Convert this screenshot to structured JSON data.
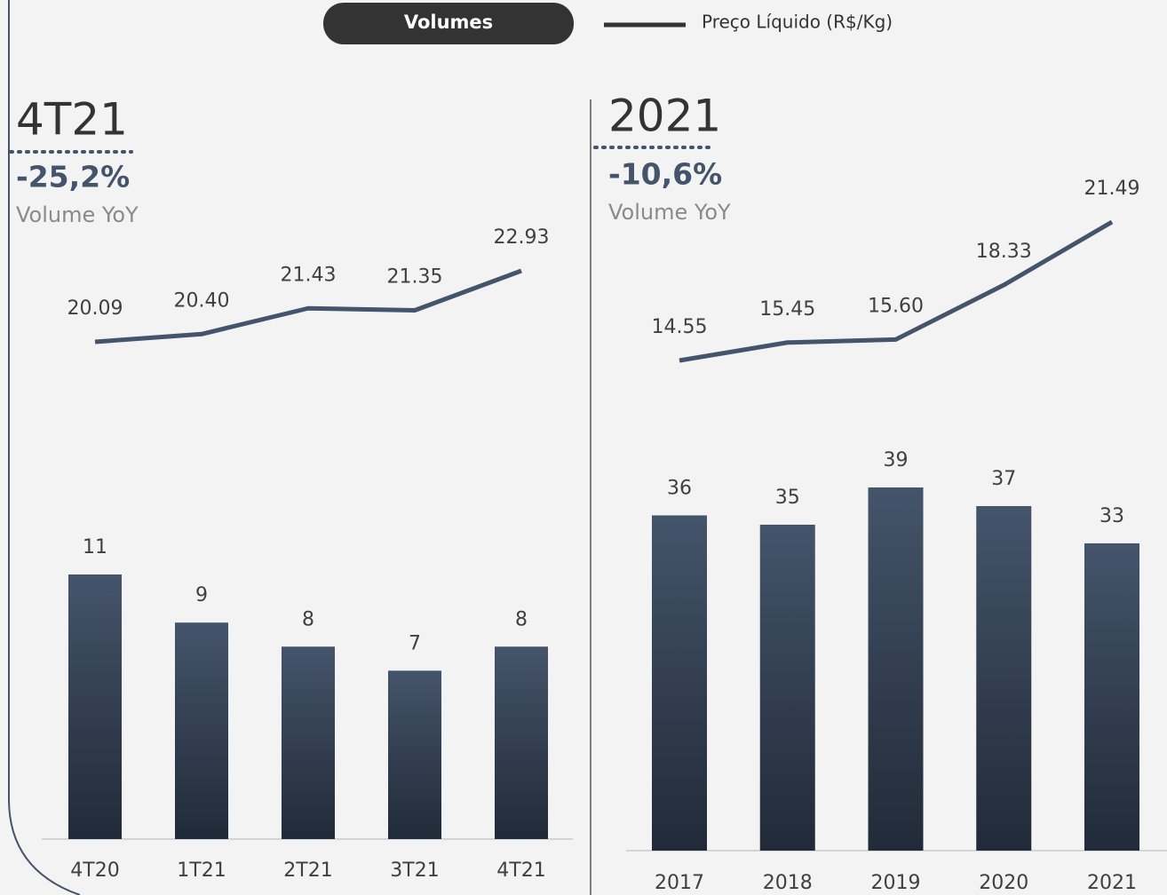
{
  "chart_data": [
    {
      "type": "bar_line",
      "title": "4T21",
      "kpi": "-25,2%",
      "kpi_label": "Volume YoY",
      "categories": [
        "4T20",
        "1T21",
        "2T21",
        "3T21",
        "4T21"
      ],
      "series": [
        {
          "name": "Volumes",
          "type": "bar",
          "color": "#44546a",
          "values": [
            11,
            9,
            8,
            7,
            8
          ]
        },
        {
          "name": "Preço Líquido (R$/Kg)",
          "type": "line",
          "color": "#44546a",
          "values": [
            20.09,
            20.4,
            21.43,
            21.35,
            22.93
          ],
          "value_labels": [
            "20.09",
            "20.40",
            "21.43",
            "21.35",
            "22.93"
          ]
        }
      ]
    },
    {
      "type": "bar_line",
      "title": "2021",
      "kpi": "-10,6%",
      "kpi_label": "Volume YoY",
      "categories": [
        "2017",
        "2018",
        "2019",
        "2020",
        "2021"
      ],
      "series": [
        {
          "type": "bar",
          "color": "#44546a",
          "values": [
            36,
            35,
            39,
            37,
            33
          ]
        },
        {
          "type": "line",
          "color": "#44546a",
          "values": [
            14.55,
            15.45,
            15.6,
            18.33,
            21.49
          ],
          "value_labels": [
            "14.55",
            "15.45",
            "15.60",
            "18.33",
            "21.49"
          ]
        }
      ]
    }
  ]
}
